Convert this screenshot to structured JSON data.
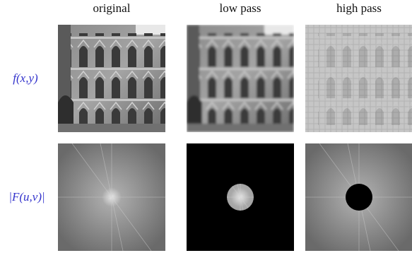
{
  "column_headers": [
    "original",
    "low pass",
    "high pass"
  ],
  "row_labels": [
    "f(x,y)",
    "|F(u,v)|"
  ]
}
